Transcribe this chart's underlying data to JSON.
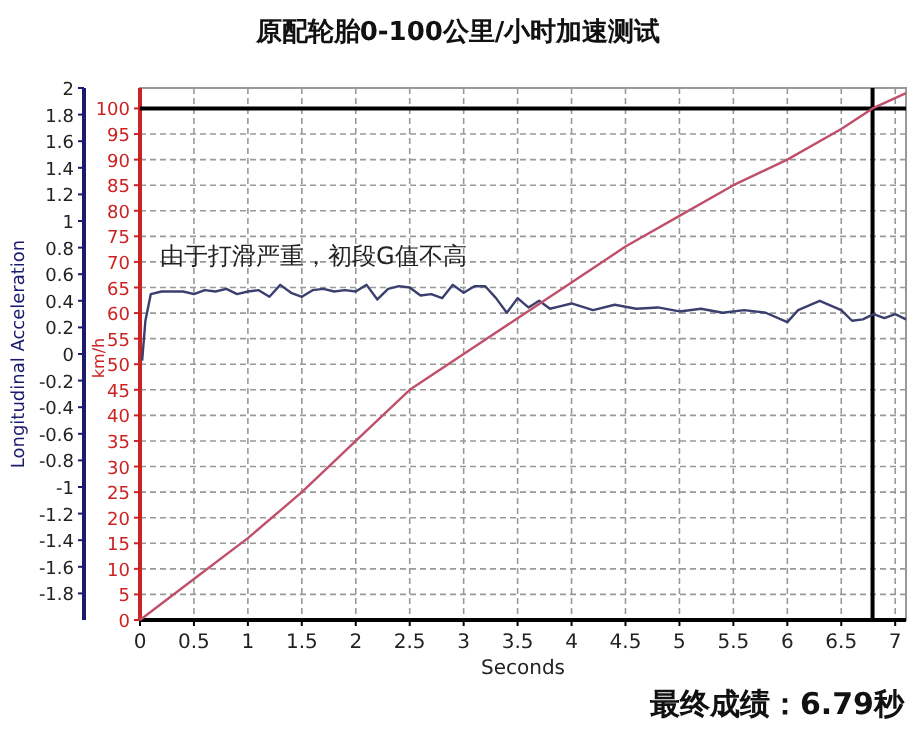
{
  "chart_data": {
    "type": "line",
    "title": "原配轮胎0-100公里/小时加速测试",
    "xlabel": "Seconds",
    "ylabel": "Longitudinal Acceleration",
    "y2label": "km/h",
    "annotations": [
      "由于打滑严重，初段G值不高",
      "最终成绩：6.79秒"
    ],
    "series": [
      {
        "color": "#3a3f6e",
        "axis": "y",
        "x": [
          0.02,
          0.05,
          0.1,
          0.2,
          0.3,
          0.4,
          0.5,
          0.6,
          0.7,
          0.8,
          0.9,
          1.0,
          1.1,
          1.2,
          1.3,
          1.4,
          1.5,
          1.6,
          1.7,
          1.8,
          1.9,
          2.0,
          2.1,
          2.2,
          2.3,
          2.4,
          2.5,
          2.6,
          2.7,
          2.8,
          2.9,
          3.0,
          3.1,
          3.2,
          3.3,
          3.4,
          3.5,
          3.6,
          3.7,
          3.8,
          3.9,
          4.0,
          4.2,
          4.4,
          4.6,
          4.8,
          5.0,
          5.2,
          5.4,
          5.6,
          5.8,
          6.0,
          6.1,
          6.3,
          6.5,
          6.6,
          6.7,
          6.8,
          6.9,
          7.0,
          7.1
        ],
        "values": [
          -0.05,
          0.25,
          0.45,
          0.47,
          0.47,
          0.47,
          0.45,
          0.48,
          0.47,
          0.49,
          0.45,
          0.47,
          0.48,
          0.43,
          0.52,
          0.46,
          0.43,
          0.48,
          0.49,
          0.47,
          0.48,
          0.47,
          0.52,
          0.41,
          0.49,
          0.51,
          0.5,
          0.44,
          0.45,
          0.42,
          0.52,
          0.46,
          0.51,
          0.51,
          0.42,
          0.31,
          0.42,
          0.35,
          0.4,
          0.34,
          0.36,
          0.38,
          0.33,
          0.37,
          0.34,
          0.35,
          0.32,
          0.34,
          0.31,
          0.33,
          0.31,
          0.24,
          0.33,
          0.4,
          0.33,
          0.25,
          0.26,
          0.3,
          0.27,
          0.3,
          0.26
        ]
      },
      {
        "color": "#c0506a",
        "axis": "y2",
        "x": [
          0,
          0.5,
          1,
          1.5,
          2,
          2.5,
          3,
          3.5,
          4,
          4.5,
          5,
          5.5,
          6,
          6.5,
          6.79,
          7.1
        ],
        "values": [
          0,
          8,
          16,
          25,
          35,
          45,
          52,
          59,
          66,
          73,
          79,
          85,
          90,
          96,
          100,
          103
        ]
      }
    ],
    "xlim": [
      0,
      7.1
    ],
    "xticks": [
      0,
      0.5,
      1,
      1.5,
      2,
      2.5,
      3,
      3.5,
      4,
      4.5,
      5,
      5.5,
      6,
      6.5,
      7
    ],
    "ylim": [
      -2,
      2
    ],
    "yticks": [
      -1.8,
      -1.6,
      -1.4,
      -1.2,
      -1,
      -0.8,
      -0.6,
      -0.4,
      -0.2,
      0,
      0.2,
      0.4,
      0.6,
      0.8,
      1,
      1.2,
      1.4,
      1.6,
      1.8,
      2
    ],
    "y2lim": [
      0,
      104
    ],
    "y2ticks": [
      0,
      5,
      10,
      15,
      20,
      25,
      30,
      35,
      40,
      45,
      50,
      55,
      60,
      65,
      70,
      75,
      80,
      85,
      90,
      95,
      100
    ],
    "ref_lines": [
      {
        "axis": "y2",
        "value": 100,
        "color": "#000000"
      },
      {
        "axis": "x",
        "value": 6.79,
        "color": "#000000"
      }
    ],
    "grid": true,
    "line_style": "solid",
    "marker": "none"
  }
}
